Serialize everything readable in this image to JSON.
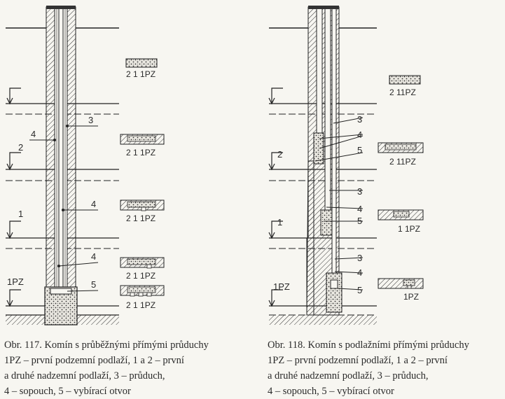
{
  "figure_left": {
    "floor_labels": {
      "upper": "",
      "second": "2",
      "first": "1",
      "basement": "1PZ"
    },
    "callouts": {
      "c3": "3",
      "c4a": "4",
      "c4b": "4",
      "c4c": "4",
      "c5": "5"
    },
    "sections": [
      "2 1 1PZ",
      "2 1 1PZ",
      "2 1 1PZ",
      "2 1 1PZ",
      "2 1 1PZ"
    ],
    "caption": [
      "Obr. 117.  Komín s průběžnými přímými průduchy",
      "1PZ – první podzemní podlaží, 1 a 2 – první",
      "a druhé nadzemní podlaží, 3 – průduch,",
      "4 – sopouch, 5 – vybírací otvor"
    ]
  },
  "figure_right": {
    "floor_labels": {
      "upper": "",
      "second": "2",
      "first": "1",
      "basement": "1PZ"
    },
    "callouts": {
      "c3a": "3",
      "c4a": "4",
      "c5a": "5",
      "c3b": "3",
      "c4b": "4",
      "c5b": "5",
      "c3c": "3",
      "c4c": "4",
      "c5c": "5"
    },
    "sections": [
      "2 11PZ",
      "2 11PZ",
      "1 1PZ",
      "1PZ"
    ],
    "caption": [
      "Obr. 118.  Komín s podlažními přímými průduchy",
      "1PZ – první podzemní podlaží, 1 a 2 – první",
      "a druhé nadzemní podlaží, 3 – průduch,",
      "4 – sopouch, 5 – vybírací otvor"
    ]
  }
}
